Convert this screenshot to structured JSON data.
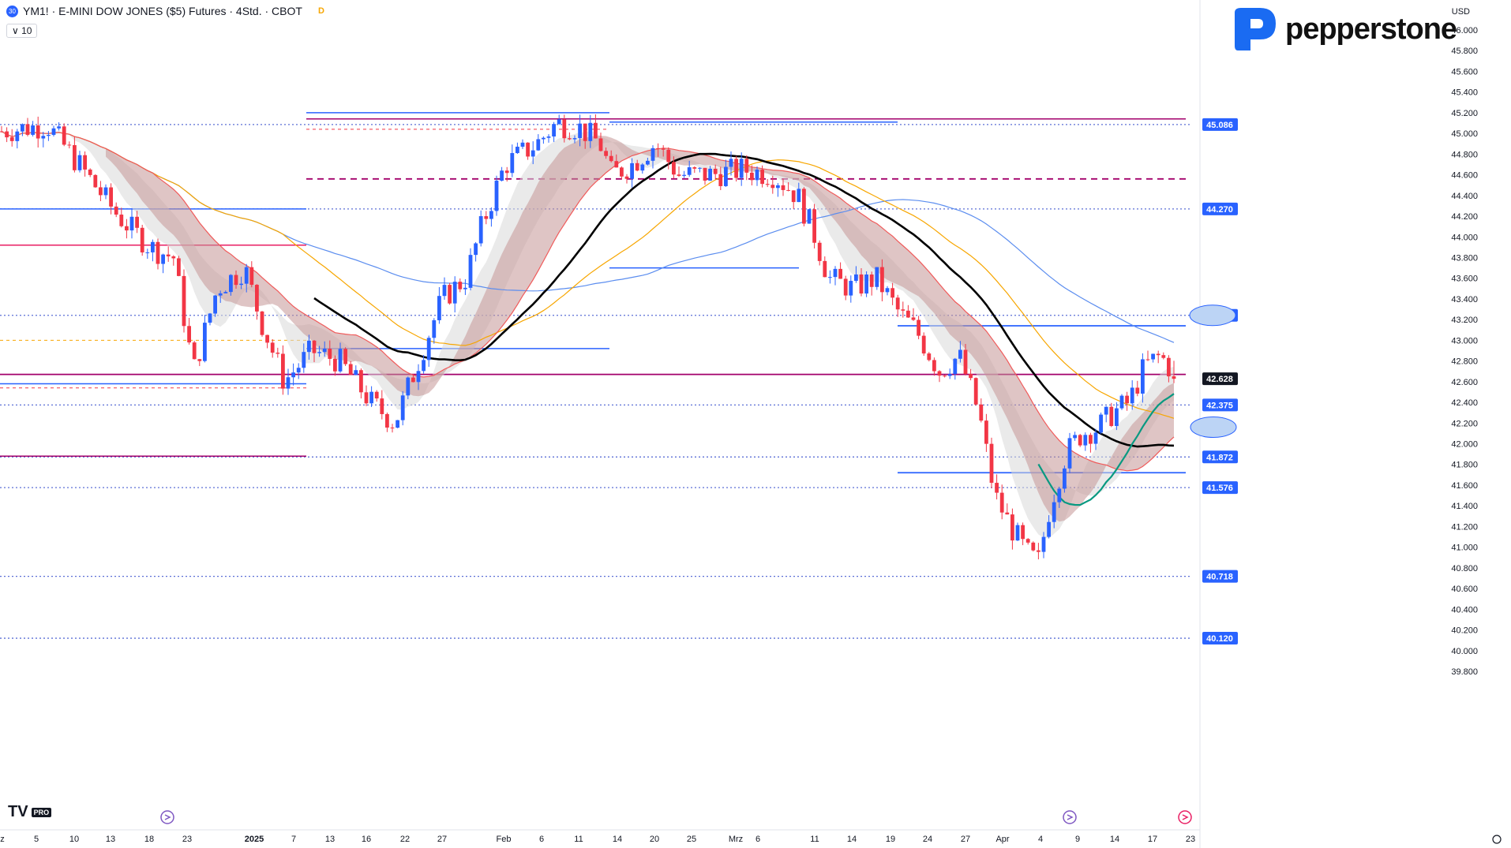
{
  "header": {
    "symbol_badge": "30",
    "title": "YM1! · E-MINI DOW JONES ($5) Futures · 4Std. · CBOT",
    "flag": "D",
    "indicator_toggle": "10"
  },
  "brand": {
    "name": "pepperstone",
    "accent": "#1a6bf2"
  },
  "footer_logo": {
    "text": "TV",
    "badge": "PRO"
  },
  "chart_data": {
    "type": "candlestick",
    "currency": "USD",
    "price_ticks": [
      "46.000",
      "45.800",
      "45.600",
      "45.400",
      "45.200",
      "45.000",
      "44.800",
      "44.600",
      "44.400",
      "44.200",
      "44.000",
      "43.800",
      "43.600",
      "43.400",
      "43.200",
      "43.000",
      "42.800",
      "42.600",
      "42.400",
      "42.200",
      "42.000",
      "41.800",
      "41.600",
      "41.400",
      "41.200",
      "41.000",
      "40.800",
      "40.600",
      "40.400",
      "40.200",
      "40.000",
      "39.800"
    ],
    "ylim": [
      39750,
      46200
    ],
    "x_ticks": [
      "z",
      "5",
      "10",
      "13",
      "18",
      "23",
      "2025",
      "7",
      "13",
      "16",
      "22",
      "27",
      "Feb",
      "6",
      "11",
      "14",
      "20",
      "25",
      "Mrz",
      "6",
      "11",
      "14",
      "19",
      "24",
      "27",
      "Apr",
      "4",
      "9",
      "14",
      "17",
      "23"
    ],
    "level_labels": [
      {
        "value": 45086,
        "label": "45.086",
        "color": "#2962ff"
      },
      {
        "value": 44270,
        "label": "44.270",
        "color": "#2962ff"
      },
      {
        "value": 43241,
        "label": "43.241",
        "color": "#2962ff"
      },
      {
        "value": 42628,
        "label": "42.628",
        "color": "#131722"
      },
      {
        "value": 42375,
        "label": "42.375",
        "color": "#2962ff"
      },
      {
        "value": 41872,
        "label": "41.872",
        "color": "#2962ff"
      },
      {
        "value": 41576,
        "label": "41.576",
        "color": "#2962ff"
      },
      {
        "value": 40718,
        "label": "40.718",
        "color": "#2962ff"
      },
      {
        "value": 40120,
        "label": "40.120",
        "color": "#2962ff"
      }
    ],
    "colors": {
      "up": "#2962ff",
      "down": "#f23645",
      "sma_black": "#000000",
      "ema_red": "#f05a5a",
      "ema_orange": "#f7a600",
      "ema_blue": "#5b8def",
      "green": "#089981",
      "band_red": "#c49595",
      "band_grey": "#d8d8d8"
    }
  }
}
